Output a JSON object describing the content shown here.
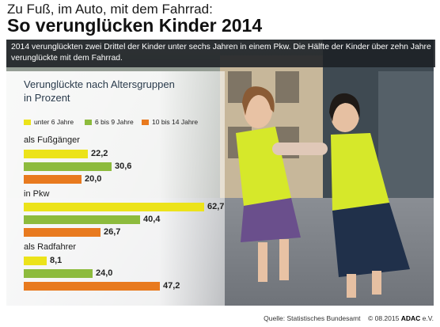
{
  "header": {
    "title_line1": "Zu Fuß, im Auto, mit dem Fahrrad:",
    "title_line2": "So verunglücken Kinder 2014"
  },
  "intro": "2014 verunglückten zwei Drittel der Kinder unter sechs Jahren in einem Pkw. Die Hälfte der Kinder über zehn Jahre verunglückte mit dem Fahrrad.",
  "footer": {
    "source": "Quelle:  Statistisches Bundesamt",
    "copyright": "© 08.2015",
    "brand": "ADAC",
    "brand_suffix": "e.V."
  },
  "colors": {
    "yellow": "#ece31a",
    "green": "#8dbb3d",
    "orange": "#e87a1f",
    "title_blue": "#2a3b4c"
  },
  "chart_data": {
    "type": "bar",
    "orientation": "horizontal",
    "subtitle_line1": "Verunglückte nach Altersgruppen",
    "subtitle_line2": "in Prozent",
    "categories": [
      "als Fußgänger",
      "in Pkw",
      "als Radfahrer"
    ],
    "series": [
      {
        "name": "unter 6 Jahre",
        "color": "#ece31a",
        "values": [
          22.2,
          62.7,
          8.1
        ],
        "labels": [
          "22,2",
          "62,7",
          "8,1"
        ]
      },
      {
        "name": "6 bis 9 Jahre",
        "color": "#8dbb3d",
        "values": [
          30.6,
          40.4,
          24.0
        ],
        "labels": [
          "30,6",
          "40,4",
          "24,0"
        ]
      },
      {
        "name": "10 bis 14 Jahre",
        "color": "#e87a1f",
        "values": [
          20.0,
          26.7,
          47.2
        ],
        "labels": [
          "20,0",
          "26,7",
          "47,2"
        ]
      }
    ],
    "xlim": [
      0,
      62.7
    ],
    "grid": false,
    "legend_position": "top"
  }
}
